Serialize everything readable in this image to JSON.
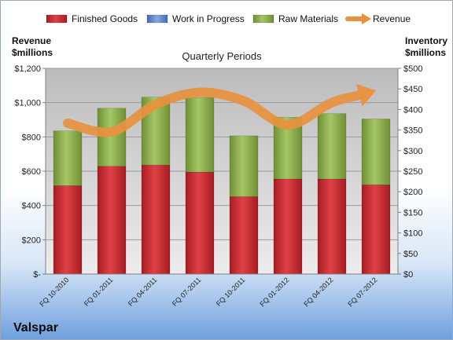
{
  "chart_data": {
    "type": "bar",
    "stacked": true,
    "title": "Quarterly Periods",
    "brand": "Valspar",
    "left_axis_label": [
      "Revenue",
      "$millions"
    ],
    "right_axis_label": [
      "Inventory",
      "$millions"
    ],
    "categories": [
      "FQ 10-2010",
      "FQ 01-2011",
      "FQ 04-2011",
      "FQ 07-2011",
      "FQ 10-2011",
      "FQ 01-2012",
      "FQ 04-2012",
      "FQ 07-2012"
    ],
    "left_ticks": [
      "$-",
      "$200",
      "$400",
      "$600",
      "$800",
      "$1,000",
      "$1,200"
    ],
    "right_ticks": [
      "$0",
      "$50",
      "$100",
      "$150",
      "$200",
      "$250",
      "$300",
      "$350",
      "$400",
      "$450",
      "$500"
    ],
    "ylim_left": [
      0,
      1200
    ],
    "ylim_right": [
      0,
      500
    ],
    "legend_position": "top",
    "grid": true,
    "series": [
      {
        "name": "Finished Goods",
        "axis": "right",
        "kind": "bar",
        "color": "#c0272d",
        "values": [
          215,
          262,
          265,
          248,
          188,
          231,
          231,
          217
        ]
      },
      {
        "name": "Work in Progress",
        "axis": "right",
        "kind": "bar",
        "color": "#5b84c8",
        "values": [
          0,
          0,
          0,
          0,
          0,
          0,
          0,
          0
        ]
      },
      {
        "name": "Raw Materials",
        "axis": "right",
        "kind": "bar",
        "color": "#8db04a",
        "values": [
          133,
          141,
          165,
          181,
          148,
          150,
          159,
          160
        ]
      },
      {
        "name": "Revenue",
        "axis": "left",
        "kind": "line",
        "color": "#e8913e",
        "values": [
          880,
          830,
          990,
          1060,
          1010,
          870,
          1000,
          1070
        ]
      }
    ]
  }
}
